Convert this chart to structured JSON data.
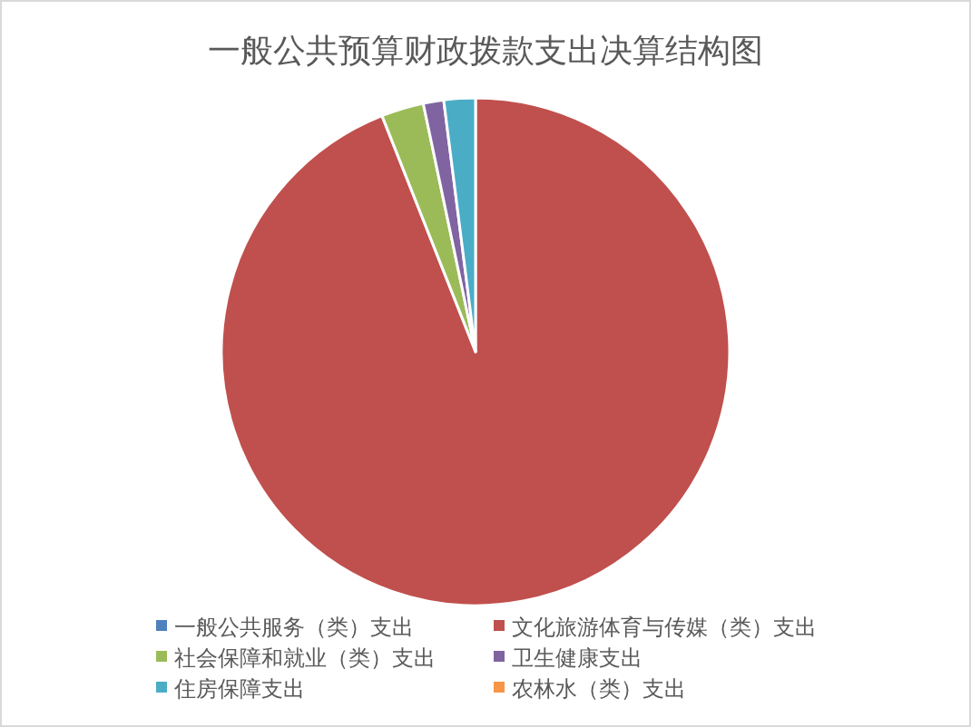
{
  "chart_data": {
    "type": "pie",
    "title": "一般公共预算财政拨款支出决算结构图",
    "categories": [
      "一般公共服务（类）支出",
      "文化旅游体育与传媒（类）支出",
      "社会保障和就业（类）支出",
      "卫生健康支出",
      "住房保障支出",
      "农林水（类）支出"
    ],
    "values": [
      0,
      94.0,
      2.7,
      1.3,
      2.0,
      0
    ],
    "colors": [
      "#4f81bd",
      "#c0504d",
      "#9bbb59",
      "#8064a2",
      "#4bacc6",
      "#f79646"
    ],
    "legend": "bottom"
  }
}
